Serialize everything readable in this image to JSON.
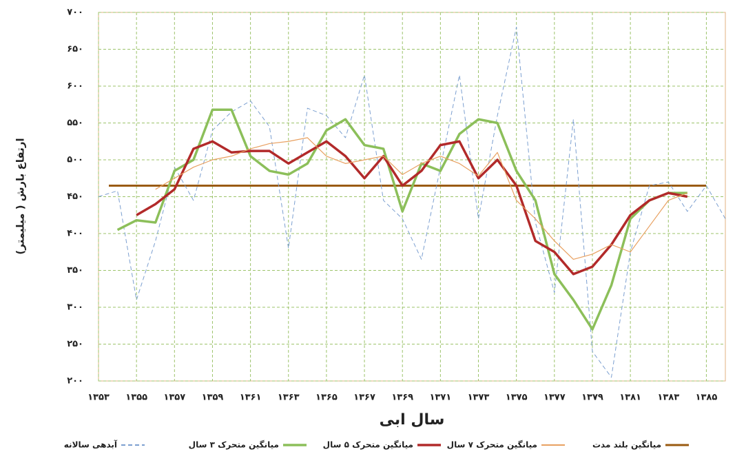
{
  "chart_data": {
    "type": "line",
    "y_label": "ارتفاع بارش ( میلیمتر)",
    "x_label": "سال ابی",
    "xlim": [
      1353,
      1386
    ],
    "xticks": [
      {
        "value": 1353,
        "label": "۱۳۵۳"
      },
      {
        "value": 1355,
        "label": "۱۳۵۵"
      },
      {
        "value": 1357,
        "label": "۱۳۵۷"
      },
      {
        "value": 1359,
        "label": "۱۳۵۹"
      },
      {
        "value": 1361,
        "label": "۱۳۶۱"
      },
      {
        "value": 1363,
        "label": "۱۳۶۳"
      },
      {
        "value": 1365,
        "label": "۱۳۶۵"
      },
      {
        "value": 1367,
        "label": "۱۳۶۷"
      },
      {
        "value": 1369,
        "label": "۱۳۶۹"
      },
      {
        "value": 1371,
        "label": "۱۳۷۱"
      },
      {
        "value": 1373,
        "label": "۱۳۷۳"
      },
      {
        "value": 1375,
        "label": "۱۳۷۵"
      },
      {
        "value": 1377,
        "label": "۱۳۷۷"
      },
      {
        "value": 1379,
        "label": "۱۳۷۹"
      },
      {
        "value": 1381,
        "label": "۱۳۸۱"
      },
      {
        "value": 1383,
        "label": "۱۳۸۳"
      },
      {
        "value": 1385,
        "label": "۱۳۸۵"
      }
    ],
    "ylim": [
      200,
      700
    ],
    "yticks": [
      {
        "value": 200,
        "label": "۲۰۰"
      },
      {
        "value": 250,
        "label": "۲۵۰"
      },
      {
        "value": 300,
        "label": "۳۰۰"
      },
      {
        "value": 350,
        "label": "۳۵۰"
      },
      {
        "value": 400,
        "label": "۴۰۰"
      },
      {
        "value": 450,
        "label": "۴۵۰"
      },
      {
        "value": 500,
        "label": "۵۰۰"
      },
      {
        "value": 550,
        "label": "۵۵۰"
      },
      {
        "value": 600,
        "label": "۶۰۰"
      },
      {
        "value": 650,
        "label": "۶۵۰"
      },
      {
        "value": 700,
        "label": "۷۰۰"
      }
    ],
    "grid": true,
    "mean_line": {
      "name": "میانگین بلند مدت",
      "color": "#9a5a10",
      "value": 465
    },
    "series": [
      {
        "name": "آبدهی سالانه",
        "color": "#7b9fd0",
        "dashed": true,
        "x": [
          1353,
          1354,
          1355,
          1356,
          1357,
          1358,
          1359,
          1360,
          1361,
          1362,
          1363,
          1364,
          1365,
          1366,
          1367,
          1368,
          1369,
          1370,
          1371,
          1372,
          1373,
          1374,
          1375,
          1376,
          1377,
          1378,
          1379,
          1380,
          1381,
          1382,
          1383,
          1384,
          1385,
          1386
        ],
        "values": [
          450,
          458,
          310,
          390,
          490,
          445,
          540,
          565,
          580,
          545,
          380,
          570,
          560,
          530,
          615,
          445,
          420,
          365,
          490,
          615,
          420,
          560,
          680,
          415,
          320,
          555,
          240,
          205,
          375,
          465,
          470,
          430,
          465,
          420
        ]
      },
      {
        "name": "میانگین متحرک ۳ سال",
        "color": "#8cbf5a",
        "x": [
          1354,
          1355,
          1356,
          1357,
          1358,
          1359,
          1360,
          1361,
          1362,
          1363,
          1364,
          1365,
          1366,
          1367,
          1368,
          1369,
          1370,
          1371,
          1372,
          1373,
          1374,
          1375,
          1376,
          1377,
          1378,
          1379,
          1380,
          1381,
          1382,
          1383,
          1384
        ],
        "values": [
          405,
          418,
          415,
          485,
          500,
          568,
          568,
          505,
          485,
          480,
          495,
          540,
          555,
          520,
          515,
          430,
          495,
          485,
          535,
          555,
          550,
          485,
          445,
          345,
          310,
          270,
          330,
          420,
          445,
          455,
          455
        ]
      },
      {
        "name": "میانگین متحرک ۵ سال",
        "color": "#b22a2a",
        "x": [
          1355,
          1356,
          1357,
          1358,
          1359,
          1360,
          1361,
          1362,
          1363,
          1364,
          1365,
          1366,
          1367,
          1368,
          1369,
          1370,
          1371,
          1372,
          1373,
          1374,
          1375,
          1376,
          1377,
          1378,
          1379,
          1380,
          1381,
          1382,
          1383,
          1384
        ],
        "values": [
          425,
          440,
          460,
          515,
          525,
          510,
          512,
          512,
          495,
          510,
          525,
          505,
          475,
          505,
          465,
          485,
          520,
          525,
          475,
          500,
          465,
          390,
          375,
          345,
          355,
          385,
          425,
          445,
          455,
          450
        ]
      },
      {
        "name": "میانگین متحرک ۷ سال",
        "color": "#e8a060",
        "x": [
          1356,
          1357,
          1358,
          1359,
          1360,
          1361,
          1362,
          1363,
          1364,
          1365,
          1366,
          1367,
          1368,
          1369,
          1370,
          1371,
          1372,
          1373,
          1374,
          1375,
          1376,
          1377,
          1378,
          1379,
          1380,
          1381,
          1382,
          1383,
          1384
        ],
        "values": [
          460,
          475,
          490,
          500,
          505,
          515,
          522,
          525,
          530,
          505,
          495,
          500,
          505,
          480,
          495,
          505,
          495,
          478,
          510,
          445,
          420,
          390,
          365,
          372,
          385,
          375,
          410,
          445,
          455
        ]
      }
    ]
  }
}
